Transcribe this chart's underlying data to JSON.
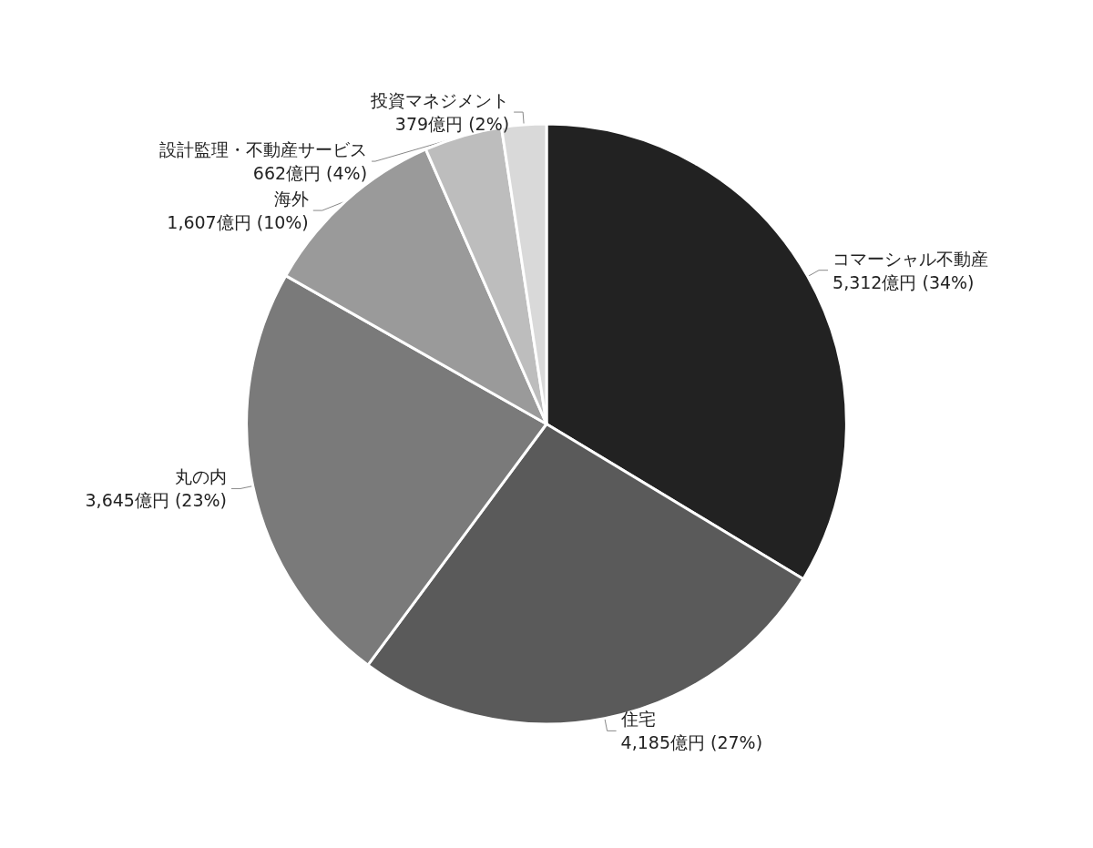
{
  "chart_data": {
    "type": "pie",
    "categories": [
      "コマーシャル不動産",
      "住宅",
      "丸の内",
      "海外",
      "設計監理・不動産サービス",
      "投資マネジメント"
    ],
    "values": [
      5312,
      4185,
      3645,
      1607,
      662,
      379
    ],
    "value_labels": [
      "5,312億円 (34%)",
      "4,185億円 (27%)",
      "3,645億円 (23%)",
      "1,607億円 (10%)",
      "662億円 (4%)",
      "379億円 (2%)"
    ],
    "colors": [
      "#222222",
      "#5a5a5a",
      "#7a7a7a",
      "#9a9a9a",
      "#bdbdbd",
      "#d9d9d9"
    ],
    "legend": false
  }
}
